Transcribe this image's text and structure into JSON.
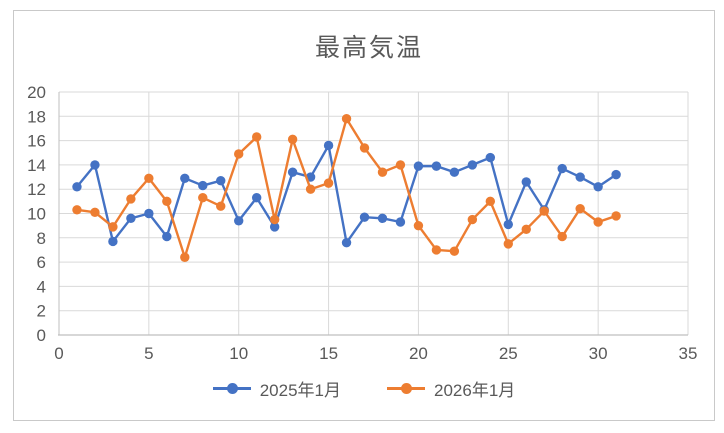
{
  "title": "最高気温",
  "chart_data": {
    "type": "line",
    "title": "最高気温",
    "x": [
      1,
      2,
      3,
      4,
      5,
      6,
      7,
      8,
      9,
      10,
      11,
      12,
      13,
      14,
      15,
      16,
      17,
      18,
      19,
      20,
      21,
      22,
      23,
      24,
      25,
      26,
      27,
      28,
      29,
      30,
      31
    ],
    "series": [
      {
        "name": "2025年1月",
        "color": "#4472C4",
        "values": [
          12.2,
          14.0,
          7.7,
          9.6,
          10.0,
          8.1,
          12.9,
          12.3,
          12.7,
          9.4,
          11.3,
          8.9,
          13.4,
          13.0,
          15.6,
          7.6,
          9.7,
          9.6,
          9.3,
          13.9,
          13.9,
          13.4,
          14.0,
          14.6,
          9.1,
          12.6,
          10.3,
          13.7,
          13.0,
          12.2,
          13.2
        ]
      },
      {
        "name": "2026年1月",
        "color": "#ED7D31",
        "values": [
          10.3,
          10.1,
          8.9,
          11.2,
          12.9,
          11.0,
          6.4,
          11.3,
          10.6,
          14.9,
          16.3,
          9.5,
          16.1,
          12.0,
          12.5,
          17.8,
          15.4,
          13.4,
          14.0,
          9.0,
          7.0,
          6.9,
          9.5,
          11.0,
          7.5,
          8.7,
          10.2,
          8.1,
          10.4,
          9.3,
          9.8
        ]
      }
    ],
    "xlim": [
      0,
      35
    ],
    "ylim": [
      0,
      20
    ],
    "x_ticks": [
      0,
      5,
      10,
      15,
      20,
      25,
      30,
      35
    ],
    "y_ticks": [
      0,
      2,
      4,
      6,
      8,
      10,
      12,
      14,
      16,
      18,
      20
    ],
    "xlabel": "",
    "ylabel": "",
    "grid": "on",
    "legend_position": "bottom",
    "colors": {
      "axis_text": "#595959",
      "grid_line": "#d9d9d9",
      "axis_line": "#bfbfbf",
      "title_text": "#595959",
      "frame_border": "#c9c9c9"
    }
  }
}
